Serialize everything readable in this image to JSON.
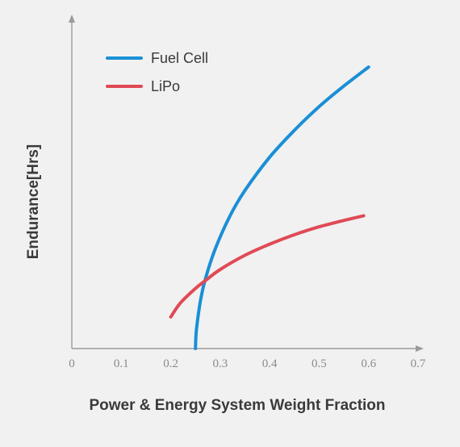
{
  "chart_data": {
    "type": "line",
    "title": "",
    "xlabel": "Power & Energy System Weight Fraction",
    "ylabel": "Endurance[Hrs]",
    "xlim": [
      0,
      0.7
    ],
    "ylim": [
      0,
      10
    ],
    "xticks": [
      "0",
      "0.1",
      "0.2",
      "0.3",
      "0.4",
      "0.5",
      "0.6",
      "0.7"
    ],
    "yticks": [],
    "grid": false,
    "legend_position": "top-left",
    "series": [
      {
        "name": "Fuel Cell",
        "color": "#1a8fd6",
        "x": [
          0.25,
          0.252,
          0.26,
          0.27,
          0.29,
          0.32,
          0.35,
          0.4,
          0.45,
          0.5,
          0.55,
          0.6
        ],
        "y": [
          0.0,
          0.6,
          1.5,
          2.2,
          3.15,
          4.2,
          5.0,
          6.05,
          6.9,
          7.65,
          8.3,
          8.9
        ]
      },
      {
        "name": "LiPo",
        "color": "#e04a55",
        "x": [
          0.2,
          0.22,
          0.25,
          0.27,
          0.3,
          0.35,
          0.4,
          0.45,
          0.5,
          0.55,
          0.59
        ],
        "y": [
          1.0,
          1.45,
          1.9,
          2.15,
          2.5,
          2.95,
          3.3,
          3.6,
          3.85,
          4.05,
          4.2
        ]
      }
    ]
  }
}
